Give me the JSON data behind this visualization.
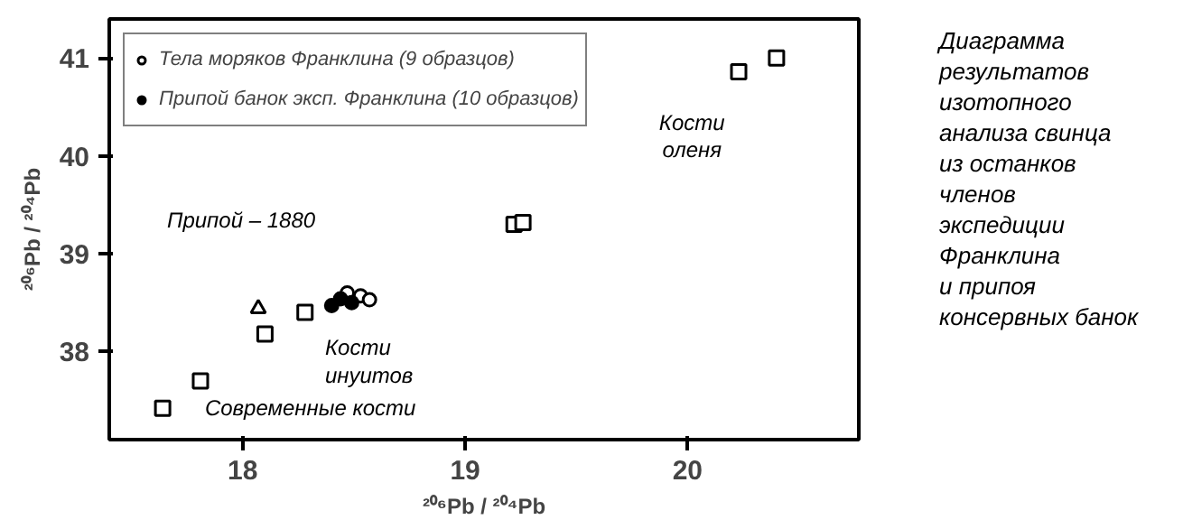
{
  "chart_data": {
    "type": "scatter",
    "xlabel": "²⁰⁶Pb / ²⁰⁴Pb",
    "ylabel": "²⁰⁶Pb / ²⁰⁴Pb",
    "xlim": [
      17.4,
      20.77
    ],
    "ylim": [
      37.1,
      41.4
    ],
    "xticks": [
      18,
      19,
      20
    ],
    "yticks": [
      38,
      39,
      40,
      41
    ],
    "grid": false,
    "legend": "top left",
    "series": [
      {
        "name": "Тела моряков Франклина (9 образцов)",
        "color": "#ffffff",
        "marker": "circle",
        "x": [
          18.47,
          18.53,
          18.57
        ],
        "values": [
          38.6,
          38.57,
          38.53
        ]
      },
      {
        "name": "Припой банок эксп. Франклина (10 образцов)",
        "color": "#000000",
        "marker": "circle",
        "x": [
          18.4,
          18.44,
          18.49
        ],
        "values": [
          38.47,
          38.54,
          38.5
        ]
      },
      {
        "color": "#ffffff",
        "marker": "square",
        "x": [
          17.64,
          17.81,
          18.1,
          18.28,
          19.22,
          19.26,
          20.23,
          20.4
        ],
        "values": [
          37.42,
          37.7,
          38.18,
          38.4,
          39.3,
          39.32,
          40.86,
          41.0
        ]
      },
      {
        "color": "#ffffff",
        "marker": "triangle",
        "x": [
          18.07
        ],
        "values": [
          38.44
        ]
      }
    ],
    "annotations": [
      "Припой – 1880",
      "Кости\nоленя",
      "Кости\nинуитов",
      "Современные кости",
      "Диаграмма\nрезультатов\nизотопного\nанализа свинца\nиз останков\nчленов\nэкспедиции\nФранклина\nи припоя\nконсервных банок"
    ]
  }
}
